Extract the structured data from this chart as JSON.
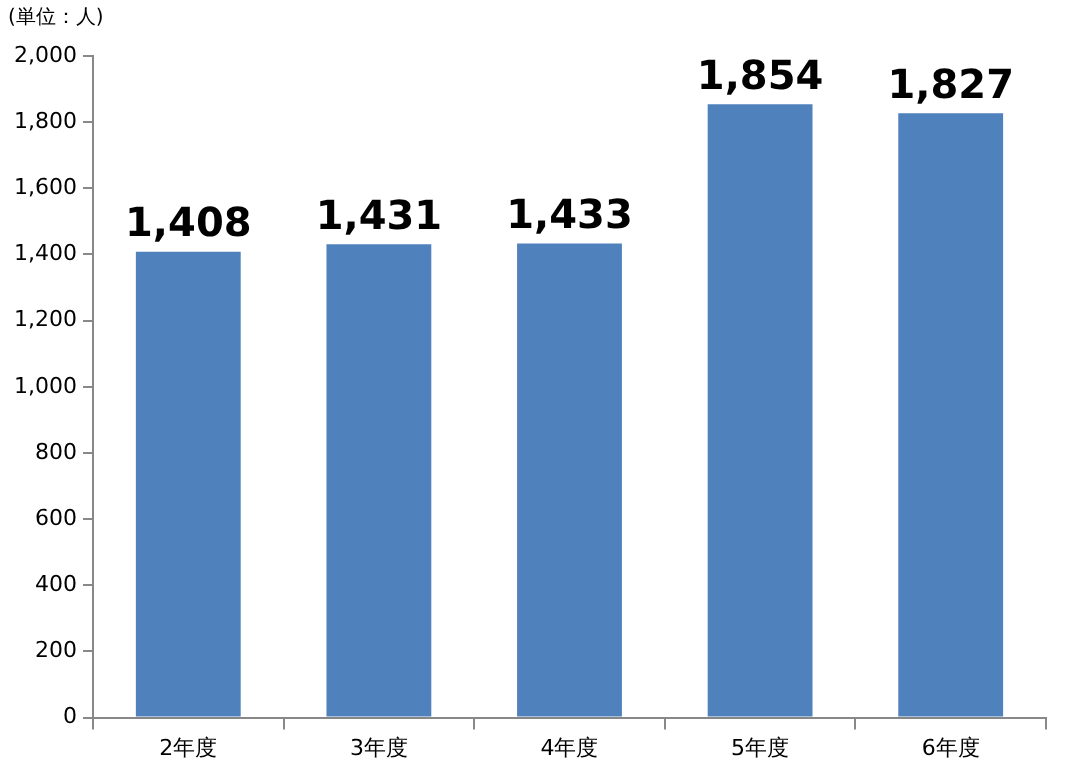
{
  "chart_data": {
    "type": "bar",
    "categories": [
      "2年度",
      "3年度",
      "4年度",
      "5年度",
      "6年度"
    ],
    "values": [
      1408,
      1431,
      1433,
      1854,
      1827
    ],
    "value_labels": [
      "1,408",
      "1,431",
      "1,433",
      "1,854",
      "1,827"
    ],
    "color": "#4f81bd",
    "ylim": [
      0,
      2000
    ],
    "yticks": [
      0,
      200,
      400,
      600,
      800,
      {
        "value": 1000,
        "label": "1,000"
      },
      {
        "value": 1200,
        "label": "1,200"
      },
      {
        "value": 1400,
        "label": "1,400"
      },
      {
        "value": 1600,
        "label": "1,600"
      },
      {
        "value": 1800,
        "label": "1,800"
      },
      {
        "value": 2000,
        "label": "2,000"
      }
    ],
    "grid": false,
    "annotations": [
      "(単位：人)"
    ]
  }
}
